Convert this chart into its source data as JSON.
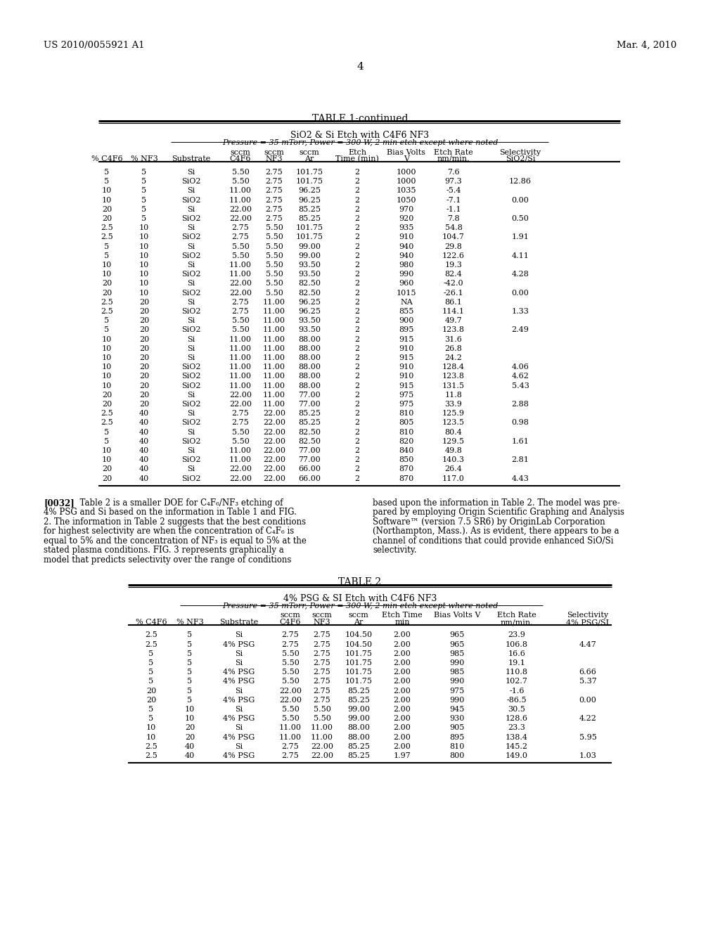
{
  "header_left": "US 2010/0055921 A1",
  "header_right": "Mar. 4, 2010",
  "page_number": "4",
  "table1_title": "TABLE 1-continued",
  "table1_subtitle1": "SiO2 & Si Etch with C4F6 NF3",
  "table1_subtitle2": "Pressure = 35 mTorr, Power = 300 W, 2 min etch except where noted",
  "table1_data": [
    [
      "5",
      "5",
      "Si",
      "5.50",
      "2.75",
      "101.75",
      "2",
      "1000",
      "7.6",
      ""
    ],
    [
      "5",
      "5",
      "SiO2",
      "5.50",
      "2.75",
      "101.75",
      "2",
      "1000",
      "97.3",
      "12.86"
    ],
    [
      "10",
      "5",
      "Si",
      "11.00",
      "2.75",
      "96.25",
      "2",
      "1035",
      "-5.4",
      ""
    ],
    [
      "10",
      "5",
      "SiO2",
      "11.00",
      "2.75",
      "96.25",
      "2",
      "1050",
      "-7.1",
      "0.00"
    ],
    [
      "20",
      "5",
      "Si",
      "22.00",
      "2.75",
      "85.25",
      "2",
      "970",
      "-1.1",
      ""
    ],
    [
      "20",
      "5",
      "SiO2",
      "22.00",
      "2.75",
      "85.25",
      "2",
      "920",
      "7.8",
      "0.50"
    ],
    [
      "2.5",
      "10",
      "Si",
      "2.75",
      "5.50",
      "101.75",
      "2",
      "935",
      "54.8",
      ""
    ],
    [
      "2.5",
      "10",
      "SiO2",
      "2.75",
      "5.50",
      "101.75",
      "2",
      "910",
      "104.7",
      "1.91"
    ],
    [
      "5",
      "10",
      "Si",
      "5.50",
      "5.50",
      "99.00",
      "2",
      "940",
      "29.8",
      ""
    ],
    [
      "5",
      "10",
      "SiO2",
      "5.50",
      "5.50",
      "99.00",
      "2",
      "940",
      "122.6",
      "4.11"
    ],
    [
      "10",
      "10",
      "Si",
      "11.00",
      "5.50",
      "93.50",
      "2",
      "980",
      "19.3",
      ""
    ],
    [
      "10",
      "10",
      "SiO2",
      "11.00",
      "5.50",
      "93.50",
      "2",
      "990",
      "82.4",
      "4.28"
    ],
    [
      "20",
      "10",
      "Si",
      "22.00",
      "5.50",
      "82.50",
      "2",
      "960",
      "-42.0",
      ""
    ],
    [
      "20",
      "10",
      "SiO2",
      "22.00",
      "5.50",
      "82.50",
      "2",
      "1015",
      "-26.1",
      "0.00"
    ],
    [
      "2.5",
      "20",
      "Si",
      "2.75",
      "11.00",
      "96.25",
      "2",
      "NA",
      "86.1",
      ""
    ],
    [
      "2.5",
      "20",
      "SiO2",
      "2.75",
      "11.00",
      "96.25",
      "2",
      "855",
      "114.1",
      "1.33"
    ],
    [
      "5",
      "20",
      "Si",
      "5.50",
      "11.00",
      "93.50",
      "2",
      "900",
      "49.7",
      ""
    ],
    [
      "5",
      "20",
      "SiO2",
      "5.50",
      "11.00",
      "93.50",
      "2",
      "895",
      "123.8",
      "2.49"
    ],
    [
      "10",
      "20",
      "Si",
      "11.00",
      "11.00",
      "88.00",
      "2",
      "915",
      "31.6",
      ""
    ],
    [
      "10",
      "20",
      "Si",
      "11.00",
      "11.00",
      "88.00",
      "2",
      "910",
      "26.8",
      ""
    ],
    [
      "10",
      "20",
      "Si",
      "11.00",
      "11.00",
      "88.00",
      "2",
      "915",
      "24.2",
      ""
    ],
    [
      "10",
      "20",
      "SiO2",
      "11.00",
      "11.00",
      "88.00",
      "2",
      "910",
      "128.4",
      "4.06"
    ],
    [
      "10",
      "20",
      "SiO2",
      "11.00",
      "11.00",
      "88.00",
      "2",
      "910",
      "123.8",
      "4.62"
    ],
    [
      "10",
      "20",
      "SiO2",
      "11.00",
      "11.00",
      "88.00",
      "2",
      "915",
      "131.5",
      "5.43"
    ],
    [
      "20",
      "20",
      "Si",
      "22.00",
      "11.00",
      "77.00",
      "2",
      "975",
      "11.8",
      ""
    ],
    [
      "20",
      "20",
      "SiO2",
      "22.00",
      "11.00",
      "77.00",
      "2",
      "975",
      "33.9",
      "2.88"
    ],
    [
      "2.5",
      "40",
      "Si",
      "2.75",
      "22.00",
      "85.25",
      "2",
      "810",
      "125.9",
      ""
    ],
    [
      "2.5",
      "40",
      "SiO2",
      "2.75",
      "22.00",
      "85.25",
      "2",
      "805",
      "123.5",
      "0.98"
    ],
    [
      "5",
      "40",
      "Si",
      "5.50",
      "22.00",
      "82.50",
      "2",
      "810",
      "80.4",
      ""
    ],
    [
      "5",
      "40",
      "SiO2",
      "5.50",
      "22.00",
      "82.50",
      "2",
      "820",
      "129.5",
      "1.61"
    ],
    [
      "10",
      "40",
      "Si",
      "11.00",
      "22.00",
      "77.00",
      "2",
      "840",
      "49.8",
      ""
    ],
    [
      "10",
      "40",
      "SiO2",
      "11.00",
      "22.00",
      "77.00",
      "2",
      "850",
      "140.3",
      "2.81"
    ],
    [
      "20",
      "40",
      "Si",
      "22.00",
      "22.00",
      "66.00",
      "2",
      "870",
      "26.4",
      ""
    ],
    [
      "20",
      "40",
      "SiO2",
      "22.00",
      "22.00",
      "66.00",
      "2",
      "870",
      "117.0",
      "4.43"
    ]
  ],
  "para_left_bold": "[0032]",
  "para_left_rest": "  Table 2 is a smaller DOE for C₄F₆/NF₃ etching of",
  "para_left_lines": [
    "4% PSG and Si based on the information in Table 1 and FIG.",
    "2. The information in Table 2 suggests that the best conditions",
    "for highest selectivity are when the concentration of C₄F₆ is",
    "equal to 5% and the concentration of NF₃ is equal to 5% at the",
    "stated plasma conditions. FIG. 3 represents graphically a",
    "model that predicts selectivity over the range of conditions"
  ],
  "para_right_lines": [
    "based upon the information in Table 2. The model was pre-",
    "pared by employing Origin Scientific Graphing and Analysis",
    "Software™ (version 7.5 SR6) by OriginLab Corporation",
    "(Northampton, Mass.). As is evident, there appears to be a",
    "channel of conditions that could provide enhanced SiO/Si",
    "selectivity."
  ],
  "table2_title": "TABLE 2",
  "table2_subtitle1": "4% PSG & SI Etch with C4F6 NF3",
  "table2_subtitle2": "Pressure = 35 mTorr, Power = 300 W, 2 min etch except where noted",
  "table2_data": [
    [
      "2.5",
      "5",
      "Si",
      "2.75",
      "2.75",
      "104.50",
      "2.00",
      "965",
      "23.9",
      ""
    ],
    [
      "2.5",
      "5",
      "4% PSG",
      "2.75",
      "2.75",
      "104.50",
      "2.00",
      "965",
      "106.8",
      "4.47"
    ],
    [
      "5",
      "5",
      "Si",
      "5.50",
      "2.75",
      "101.75",
      "2.00",
      "985",
      "16.6",
      ""
    ],
    [
      "5",
      "5",
      "Si",
      "5.50",
      "2.75",
      "101.75",
      "2.00",
      "990",
      "19.1",
      ""
    ],
    [
      "5",
      "5",
      "4% PSG",
      "5.50",
      "2.75",
      "101.75",
      "2.00",
      "985",
      "110.8",
      "6.66"
    ],
    [
      "5",
      "5",
      "4% PSG",
      "5.50",
      "2.75",
      "101.75",
      "2.00",
      "990",
      "102.7",
      "5.37"
    ],
    [
      "20",
      "5",
      "Si",
      "22.00",
      "2.75",
      "85.25",
      "2.00",
      "975",
      "-1.6",
      ""
    ],
    [
      "20",
      "5",
      "4% PSG",
      "22.00",
      "2.75",
      "85.25",
      "2.00",
      "990",
      "-86.5",
      "0.00"
    ],
    [
      "5",
      "10",
      "Si",
      "5.50",
      "5.50",
      "99.00",
      "2.00",
      "945",
      "30.5",
      ""
    ],
    [
      "5",
      "10",
      "4% PSG",
      "5.50",
      "5.50",
      "99.00",
      "2.00",
      "930",
      "128.6",
      "4.22"
    ],
    [
      "10",
      "20",
      "Si",
      "11.00",
      "11.00",
      "88.00",
      "2.00",
      "905",
      "23.3",
      ""
    ],
    [
      "10",
      "20",
      "4% PSG",
      "11.00",
      "11.00",
      "88.00",
      "2.00",
      "895",
      "138.4",
      "5.95"
    ],
    [
      "2.5",
      "40",
      "Si",
      "2.75",
      "22.00",
      "85.25",
      "2.00",
      "810",
      "145.2",
      ""
    ],
    [
      "2.5",
      "40",
      "4% PSG",
      "2.75",
      "22.00",
      "85.25",
      "1.97",
      "800",
      "149.0",
      "1.03"
    ]
  ]
}
